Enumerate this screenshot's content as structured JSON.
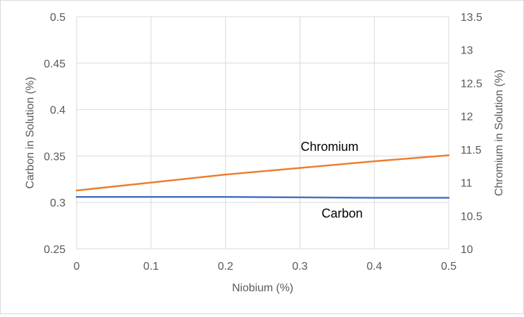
{
  "chart_data": {
    "type": "line",
    "xlabel": "Niobium (%)",
    "ylabel": "Carbon in Solution (%)",
    "y2label": "Chromium in Solution (%)",
    "xlim": [
      0,
      0.5
    ],
    "ylim": [
      0.25,
      0.5
    ],
    "y2lim": [
      10,
      13.5
    ],
    "x_ticks": [
      "0",
      "0.1",
      "0.2",
      "0.3",
      "0.4",
      "0.5"
    ],
    "y_ticks": [
      "0.25",
      "0.3",
      "0.35",
      "0.4",
      "0.45",
      "0.5"
    ],
    "y2_ticks": [
      "10",
      "10.5",
      "11",
      "11.5",
      "12",
      "12.5",
      "13",
      "13.5"
    ],
    "grid": true,
    "series": [
      {
        "name": "Carbon",
        "axis": "left",
        "color": "#4472c4",
        "x": [
          0,
          0.1,
          0.2,
          0.3,
          0.4,
          0.5
        ],
        "values": [
          0.306,
          0.306,
          0.306,
          0.3055,
          0.305,
          0.305
        ]
      },
      {
        "name": "Chromium",
        "axis": "right",
        "color": "#ed7d31",
        "x": [
          0,
          0.1,
          0.2,
          0.3,
          0.4,
          0.5
        ],
        "values": [
          10.88,
          11.0,
          11.12,
          11.22,
          11.32,
          11.41
        ]
      }
    ]
  }
}
